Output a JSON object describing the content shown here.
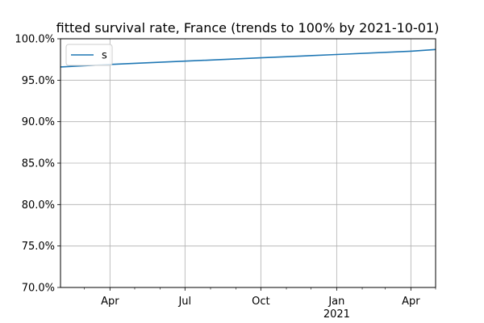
{
  "chart_data": {
    "type": "line",
    "title": "fitted survival rate, France (trends to 100% by 2021-10-01)",
    "xlabel": "",
    "ylabel": "",
    "xlim": [
      "2020-02-01",
      "2021-05-01"
    ],
    "ylim": [
      70.0,
      100.0
    ],
    "y_tick_values": [
      70.0,
      75.0,
      80.0,
      85.0,
      90.0,
      95.0,
      100.0
    ],
    "y_tick_labels": [
      "70.0%",
      "75.0%",
      "80.0%",
      "85.0%",
      "90.0%",
      "95.0%",
      "100.0%"
    ],
    "x_major_ticks": [
      {
        "date": "2020-04-01",
        "label": "Apr",
        "sublabel": ""
      },
      {
        "date": "2020-07-01",
        "label": "Jul",
        "sublabel": ""
      },
      {
        "date": "2020-10-01",
        "label": "Oct",
        "sublabel": ""
      },
      {
        "date": "2021-01-01",
        "label": "Jan",
        "sublabel": "2021"
      },
      {
        "date": "2021-04-01",
        "label": "Apr",
        "sublabel": ""
      }
    ],
    "x_minor_ticks": [
      "2020-03-01",
      "2020-05-01",
      "2020-06-01",
      "2020-08-01",
      "2020-09-01",
      "2020-11-01",
      "2020-12-01",
      "2021-02-01",
      "2021-03-01",
      "2021-05-01"
    ],
    "grid": true,
    "legend_position": "upper-left",
    "series": [
      {
        "name": "s",
        "color": "#1f77b4",
        "x": [
          "2020-02-01",
          "2020-04-01",
          "2020-07-01",
          "2020-10-01",
          "2021-01-01",
          "2021-04-01",
          "2021-05-01"
        ],
        "y": [
          96.6,
          96.9,
          97.3,
          97.7,
          98.1,
          98.5,
          98.7
        ]
      }
    ]
  }
}
